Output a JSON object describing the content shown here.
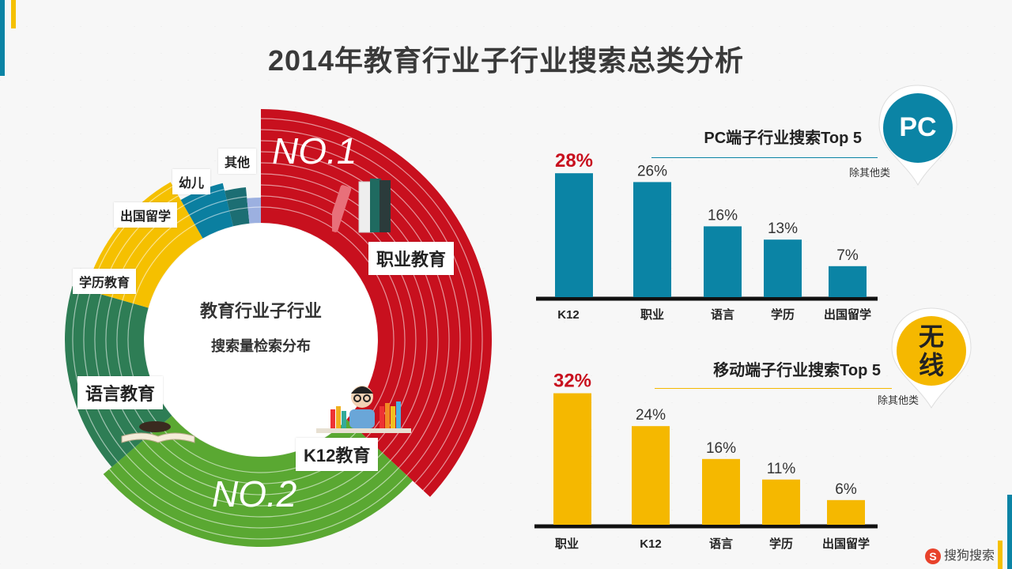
{
  "title": "2014年教育行业子行业搜索总类分析",
  "donut": {
    "center_line1": "教育行业子行业",
    "center_line2": "搜索量检索分布",
    "rank1": "NO.1",
    "rank2": "NO.2",
    "segments": [
      {
        "label": "职业教育",
        "value": 33,
        "color": "#c8101e"
      },
      {
        "label": "K12教育",
        "value": 24,
        "color": "#5aa832"
      },
      {
        "label": "语言教育",
        "value": 14,
        "color": "#2e7d55"
      },
      {
        "label": "学历教育",
        "value": 11,
        "color": "#f5c000"
      },
      {
        "label": "出国留学",
        "value": 4,
        "color": "#0b7fa0"
      },
      {
        "label": "幼儿",
        "value": 2,
        "color": "#1c6e73"
      },
      {
        "label": "其他",
        "value": 1.4,
        "color": "#9cb0e0"
      }
    ]
  },
  "chart_data": [
    {
      "type": "bar",
      "title": "PC端子行业搜索Top 5",
      "note": "除其他类",
      "badge": "PC",
      "color": "#0b84a5",
      "categories": [
        "K12",
        "职业",
        "语言",
        "学历",
        "出国留学"
      ],
      "values": [
        28,
        26,
        16,
        13,
        7
      ],
      "value_labels": [
        "28%",
        "26%",
        "16%",
        "13%",
        "7%"
      ],
      "highlight_color": "#c8101e"
    },
    {
      "type": "bar",
      "title": "移动端子行业搜索Top 5",
      "note": "除其他类",
      "badge": "无线",
      "color": "#f5b800",
      "categories": [
        "职业",
        "K12",
        "语言",
        "学历",
        "出国留学"
      ],
      "values": [
        32,
        24,
        16,
        11,
        6
      ],
      "value_labels": [
        "32%",
        "24%",
        "16%",
        "11%",
        "6%"
      ],
      "highlight_color": "#c8101e"
    }
  ],
  "logo": {
    "mark": "S",
    "text": "搜狗搜索"
  }
}
